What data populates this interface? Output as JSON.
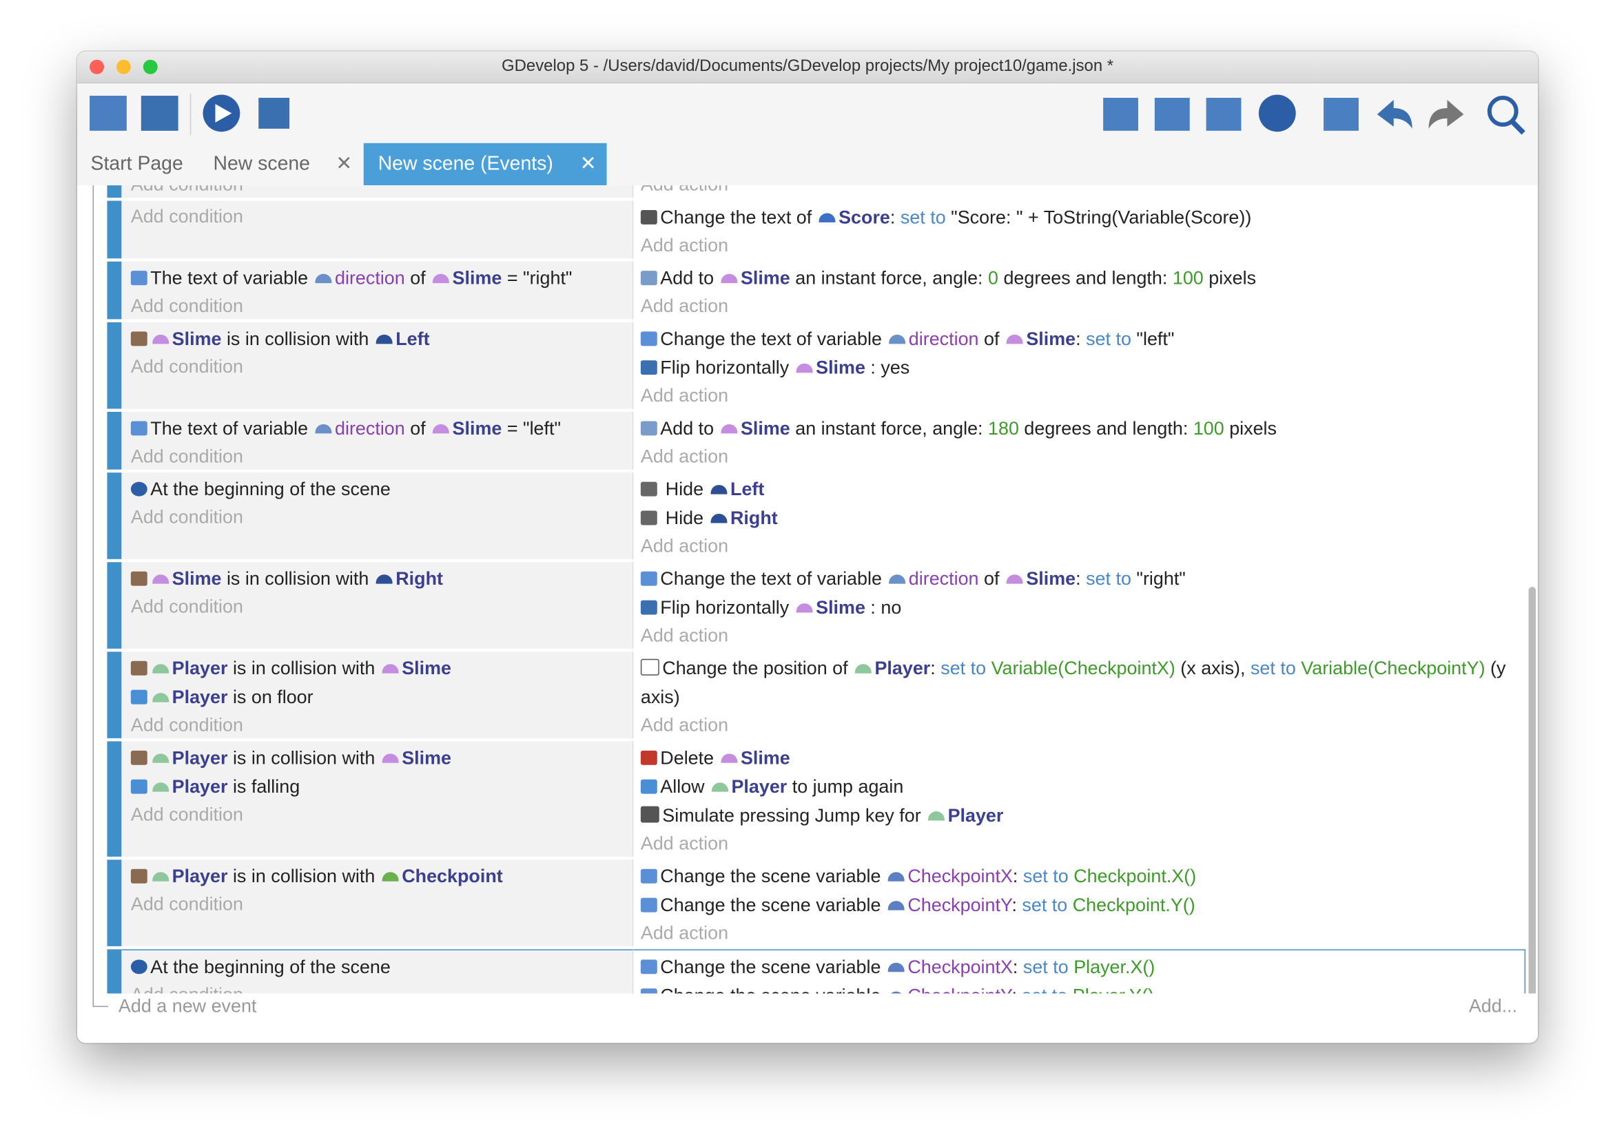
{
  "window_title": "GDevelop 5 - /Users/david/Documents/GDevelop projects/My project10/game.json *",
  "tabs": [
    "Start Page",
    "New scene",
    "New scene (Events)"
  ],
  "add_condition": "Add condition",
  "add_action": "Add action",
  "add_event": "Add a new event",
  "add_menu": "Add...",
  "events": [
    {
      "c": [],
      "a": []
    },
    {
      "c": [],
      "a": [
        {
          "i": "txt",
          "s": [
            "Change the text of ",
            [
              "Score",
              "obj",
              "#3d6fc9"
            ],
            ": ",
            [
              "set to",
              "op"
            ],
            " \"Score: \" + ToString(Variable(Score))"
          ]
        }
      ]
    },
    {
      "c": [
        {
          "i": "var",
          "s": [
            "The text of variable ",
            [
              "direction",
              "var",
              "#6b8fc9"
            ],
            " of ",
            [
              "Slime",
              "obj",
              "#c58de0"
            ],
            " = \"right\""
          ]
        }
      ],
      "a": [
        {
          "i": "force",
          "s": [
            "Add to ",
            [
              "Slime",
              "obj",
              "#c58de0"
            ],
            " an instant force, angle: ",
            [
              "0",
              "num"
            ],
            " degrees and length: ",
            [
              "100",
              "num"
            ],
            " pixels"
          ]
        }
      ]
    },
    {
      "c": [
        {
          "i": "coll",
          "s": [
            [
              "Slime",
              "obj",
              "#c58de0"
            ],
            " is in collision with ",
            [
              "Left",
              "obj",
              "#2d4f94"
            ]
          ]
        }
      ],
      "a": [
        {
          "i": "var",
          "s": [
            "Change the text of variable ",
            [
              "direction",
              "var",
              "#6b8fc9"
            ],
            " of ",
            [
              "Slime",
              "obj",
              "#c58de0"
            ],
            ": ",
            [
              "set to",
              "op"
            ],
            " \"left\""
          ]
        },
        {
          "i": "flip",
          "s": [
            "Flip horizontally ",
            [
              "Slime",
              "obj",
              "#c58de0"
            ],
            " : yes"
          ]
        }
      ]
    },
    {
      "c": [
        {
          "i": "var",
          "s": [
            "The text of variable ",
            [
              "direction",
              "var",
              "#6b8fc9"
            ],
            " of ",
            [
              "Slime",
              "obj",
              "#c58de0"
            ],
            " = \"left\""
          ]
        }
      ],
      "a": [
        {
          "i": "force",
          "s": [
            "Add to ",
            [
              "Slime",
              "obj",
              "#c58de0"
            ],
            " an instant force, angle: ",
            [
              "180",
              "num"
            ],
            " degrees and length: ",
            [
              "100",
              "num"
            ],
            " pixels"
          ]
        }
      ]
    },
    {
      "c": [
        {
          "i": "begin",
          "s": [
            "At the beginning of the scene"
          ]
        }
      ],
      "a": [
        {
          "i": "hide",
          "s": [
            " Hide ",
            [
              "Left",
              "obj",
              "#2d4f94"
            ]
          ]
        },
        {
          "i": "hide",
          "s": [
            " Hide ",
            [
              "Right",
              "obj",
              "#2d4f94"
            ]
          ]
        }
      ]
    },
    {
      "c": [
        {
          "i": "coll",
          "s": [
            [
              "Slime",
              "obj",
              "#c58de0"
            ],
            " is in collision with ",
            [
              "Right",
              "obj",
              "#2d4f94"
            ]
          ]
        }
      ],
      "a": [
        {
          "i": "var",
          "s": [
            "Change the text of variable ",
            [
              "direction",
              "var",
              "#6b8fc9"
            ],
            " of ",
            [
              "Slime",
              "obj",
              "#c58de0"
            ],
            ": ",
            [
              "set to",
              "op"
            ],
            " \"right\""
          ]
        },
        {
          "i": "flip",
          "s": [
            "Flip horizontally ",
            [
              "Slime",
              "obj",
              "#c58de0"
            ],
            " : no"
          ]
        }
      ]
    },
    {
      "c": [
        {
          "i": "coll",
          "s": [
            [
              "Player",
              "obj",
              "#8fc79d"
            ],
            " is in collision with ",
            [
              "Slime",
              "obj",
              "#c58de0"
            ]
          ]
        },
        {
          "i": "plat",
          "s": [
            [
              "Player",
              "obj",
              "#8fc79d"
            ],
            " is on floor"
          ]
        }
      ],
      "a": [
        {
          "i": "pos",
          "s": [
            "Change the position of ",
            [
              "Player",
              "obj",
              "#8fc79d"
            ],
            ": ",
            [
              "set to",
              "op"
            ],
            " ",
            [
              "Variable(CheckpointX)",
              "num"
            ],
            " (x axis), ",
            [
              "set to",
              "op"
            ],
            " ",
            [
              "Variable(CheckpointY)",
              "num"
            ],
            " (y axis)"
          ]
        }
      ]
    },
    {
      "c": [
        {
          "i": "coll",
          "s": [
            [
              "Player",
              "obj",
              "#8fc79d"
            ],
            " is in collision with ",
            [
              "Slime",
              "obj",
              "#c58de0"
            ]
          ]
        },
        {
          "i": "plat",
          "s": [
            [
              "Player",
              "obj",
              "#8fc79d"
            ],
            " is falling"
          ]
        }
      ],
      "a": [
        {
          "i": "del",
          "s": [
            "Delete ",
            [
              "Slime",
              "obj",
              "#c58de0"
            ]
          ]
        },
        {
          "i": "plat",
          "s": [
            "Allow ",
            [
              "Player",
              "obj",
              "#8fc79d"
            ],
            " to jump again"
          ]
        },
        {
          "i": "key",
          "s": [
            "Simulate pressing Jump key for ",
            [
              "Player",
              "obj",
              "#8fc79d"
            ]
          ]
        }
      ]
    },
    {
      "c": [
        {
          "i": "coll",
          "s": [
            [
              "Player",
              "obj",
              "#8fc79d"
            ],
            " is in collision with ",
            [
              "Checkpoint",
              "obj",
              "#6ab04c"
            ]
          ]
        }
      ],
      "a": [
        {
          "i": "var",
          "s": [
            "Change the scene variable ",
            [
              "CheckpointX",
              "var",
              "#5c7fc4"
            ],
            ": ",
            [
              "set to",
              "op"
            ],
            " ",
            [
              "Checkpoint.X()",
              "num"
            ]
          ]
        },
        {
          "i": "var",
          "s": [
            "Change the scene variable ",
            [
              "CheckpointY",
              "var",
              "#5c7fc4"
            ],
            ": ",
            [
              "set to",
              "op"
            ],
            " ",
            [
              "Checkpoint.Y()",
              "num"
            ]
          ]
        }
      ]
    },
    {
      "selected": true,
      "c": [
        {
          "i": "begin",
          "s": [
            "At the beginning of the scene"
          ]
        }
      ],
      "a": [
        {
          "i": "var",
          "s": [
            "Change the scene variable ",
            [
              "CheckpointX",
              "var",
              "#5c7fc4"
            ],
            ": ",
            [
              "set to",
              "op"
            ],
            " ",
            [
              "Player.X()",
              "num"
            ]
          ]
        },
        {
          "i": "var",
          "s": [
            "Change the scene variable ",
            [
              "CheckpointY",
              "var",
              "#5c7fc4"
            ],
            ": ",
            [
              "set to",
              "op"
            ],
            " ",
            [
              "Player.Y()",
              "num"
            ]
          ]
        }
      ]
    }
  ]
}
